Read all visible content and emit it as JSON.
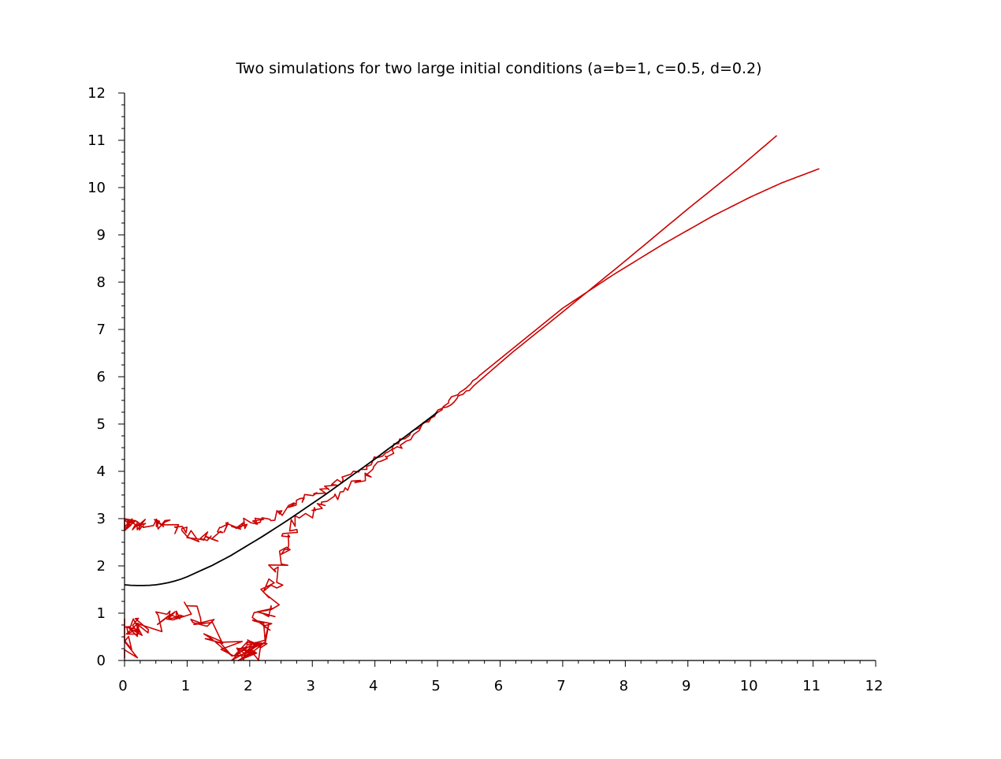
{
  "chart_data": {
    "type": "line",
    "title": "Two simulations for two  large initial conditions (a=b=1, c=0.5, d=0.2)",
    "xlabel": "",
    "ylabel": "",
    "xlim": [
      0,
      12
    ],
    "ylim": [
      0,
      12
    ],
    "xticks": [
      0,
      1,
      2,
      3,
      4,
      5,
      6,
      7,
      8,
      9,
      10,
      11,
      12
    ],
    "yticks": [
      0,
      1,
      2,
      3,
      4,
      5,
      6,
      7,
      8,
      9,
      10,
      11,
      12
    ],
    "grid": false,
    "colors": {
      "simulation": "#cc0000",
      "deterministic": "#000000",
      "axis": "#000000"
    },
    "series": [
      {
        "role": "simulation-1",
        "style": "noisy",
        "x": [
          10.42,
          9.8,
          9.0,
          8.0,
          7.0,
          6.2,
          5.5,
          5.0,
          4.4,
          3.9,
          3.4,
          3.0,
          2.6,
          2.2,
          1.9,
          1.6,
          1.3,
          1.0,
          0.7,
          0.4,
          0.2,
          0.05,
          0.0
        ],
        "y": [
          11.1,
          10.4,
          9.55,
          8.45,
          7.37,
          6.52,
          5.72,
          5.23,
          4.65,
          4.15,
          3.75,
          3.45,
          3.2,
          2.95,
          2.9,
          2.75,
          2.58,
          2.65,
          2.85,
          2.92,
          2.85,
          2.9,
          2.85
        ]
      },
      {
        "role": "simulation-2",
        "style": "noisy",
        "x": [
          11.1,
          10.5,
          10.0,
          9.4,
          8.6,
          7.8,
          7.0,
          6.3,
          5.6,
          5.1,
          4.6,
          4.2,
          3.8,
          3.3,
          2.9,
          2.6,
          2.5,
          2.4,
          2.3,
          2.2,
          2.1,
          2.0,
          1.9,
          1.8,
          1.4,
          1.0,
          0.7,
          0.4,
          0.2,
          0.05,
          0.0
        ],
        "y": [
          10.4,
          10.1,
          9.8,
          9.4,
          8.8,
          8.15,
          7.45,
          6.7,
          5.95,
          5.4,
          4.75,
          4.3,
          3.85,
          3.4,
          3.1,
          2.7,
          2.3,
          1.7,
          1.2,
          0.8,
          0.45,
          0.2,
          0.1,
          0.05,
          0.55,
          1.05,
          1.0,
          0.8,
          0.65,
          0.7,
          0.05
        ]
      },
      {
        "role": "deterministic",
        "style": "smooth",
        "x": [
          0.0,
          0.1,
          0.2,
          0.3,
          0.4,
          0.5,
          0.6,
          0.7,
          0.8,
          0.9,
          1.0,
          1.1,
          1.2,
          1.3,
          1.4,
          1.5,
          1.6,
          1.7,
          1.8,
          1.9,
          2.0,
          2.1,
          2.2,
          2.4,
          2.6,
          2.8,
          3.0,
          3.2,
          3.4,
          3.6,
          3.8,
          4.0,
          4.2,
          4.4,
          4.6,
          4.8,
          5.0
        ],
        "y": [
          1.6,
          1.59,
          1.585,
          1.585,
          1.59,
          1.6,
          1.62,
          1.645,
          1.68,
          1.72,
          1.77,
          1.83,
          1.89,
          1.95,
          2.01,
          2.08,
          2.15,
          2.22,
          2.3,
          2.38,
          2.46,
          2.54,
          2.62,
          2.79,
          2.96,
          3.14,
          3.32,
          3.5,
          3.69,
          3.88,
          4.07,
          4.26,
          4.46,
          4.65,
          4.85,
          5.05,
          5.25
        ]
      }
    ]
  }
}
